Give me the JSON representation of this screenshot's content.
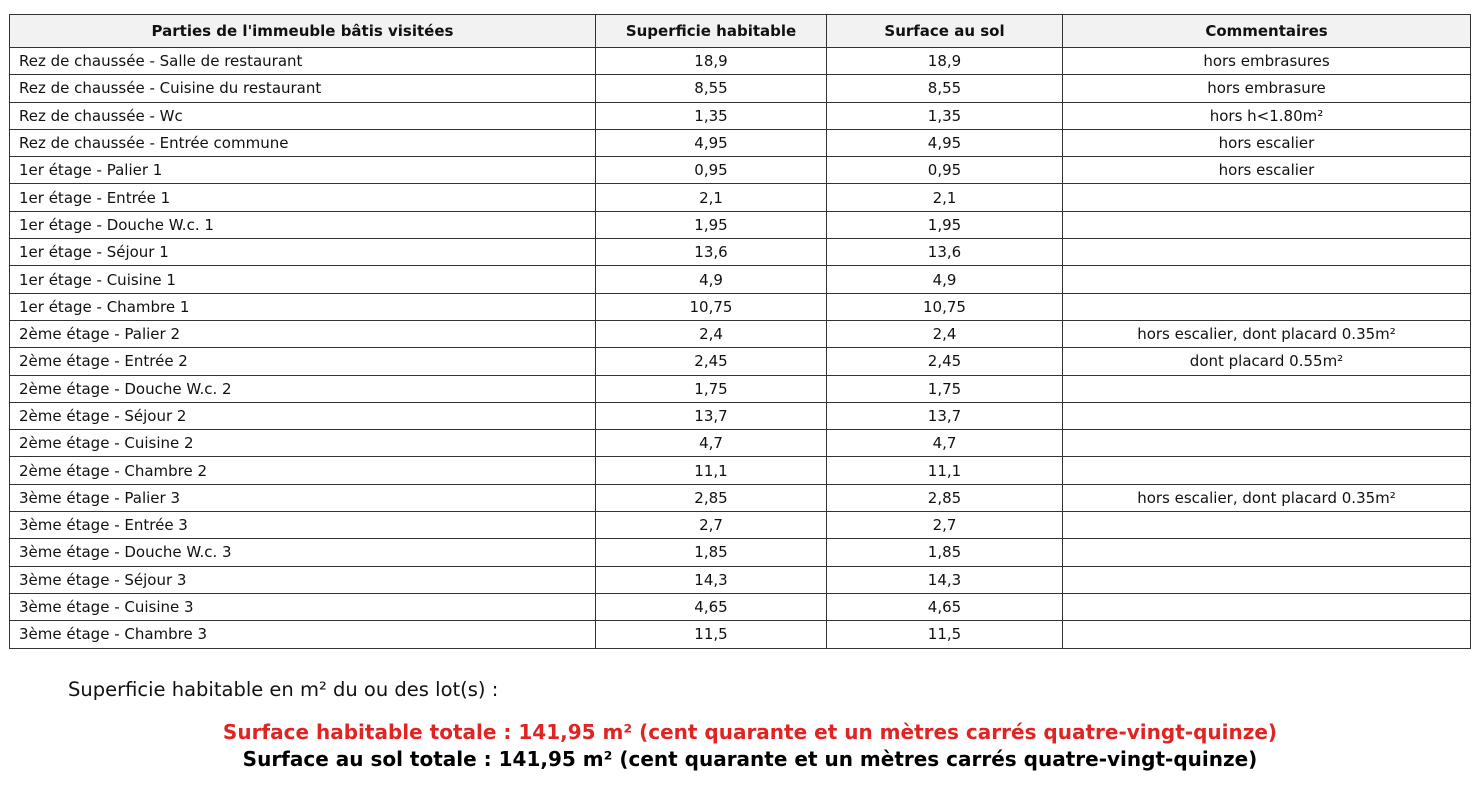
{
  "table": {
    "headers": [
      "Parties de l'immeuble bâtis visitées",
      "Superficie habitable",
      "Surface au sol",
      "Commentaires"
    ],
    "rows": [
      [
        "Rez de chaussée - Salle de restaurant",
        "18,9",
        "18,9",
        "hors embrasures"
      ],
      [
        "Rez de chaussée - Cuisine du restaurant",
        "8,55",
        "8,55",
        "hors embrasure"
      ],
      [
        "Rez de chaussée - Wc",
        "1,35",
        "1,35",
        "hors h<1.80m²"
      ],
      [
        "Rez de chaussée - Entrée commune",
        "4,95",
        "4,95",
        "hors escalier"
      ],
      [
        "1er étage - Palier 1",
        "0,95",
        "0,95",
        "hors escalier"
      ],
      [
        "1er étage - Entrée 1",
        "2,1",
        "2,1",
        ""
      ],
      [
        "1er étage - Douche W.c. 1",
        "1,95",
        "1,95",
        ""
      ],
      [
        "1er étage - Séjour 1",
        "13,6",
        "13,6",
        ""
      ],
      [
        "1er étage - Cuisine 1",
        "4,9",
        "4,9",
        ""
      ],
      [
        "1er étage - Chambre 1",
        "10,75",
        "10,75",
        ""
      ],
      [
        "2ème étage - Palier 2",
        "2,4",
        "2,4",
        "hors escalier, dont placard 0.35m²"
      ],
      [
        "2ème étage - Entrée 2",
        "2,45",
        "2,45",
        "dont placard 0.55m²"
      ],
      [
        "2ème étage - Douche W.c. 2",
        "1,75",
        "1,75",
        ""
      ],
      [
        "2ème étage - Séjour 2",
        "13,7",
        "13,7",
        ""
      ],
      [
        "2ème étage - Cuisine 2",
        "4,7",
        "4,7",
        ""
      ],
      [
        "2ème étage - Chambre 2",
        "11,1",
        "11,1",
        ""
      ],
      [
        "3ème étage - Palier 3",
        "2,85",
        "2,85",
        "hors escalier, dont placard 0.35m²"
      ],
      [
        "3ème étage - Entrée 3",
        "2,7",
        "2,7",
        ""
      ],
      [
        "3ème étage - Douche W.c. 3",
        "1,85",
        "1,85",
        ""
      ],
      [
        "3ème étage - Séjour 3",
        "14,3",
        "14,3",
        ""
      ],
      [
        "3ème étage - Cuisine 3",
        "4,65",
        "4,65",
        ""
      ],
      [
        "3ème étage - Chambre 3",
        "11,5",
        "11,5",
        ""
      ]
    ]
  },
  "summary": {
    "label": "Superficie habitable en m² du ou des lot(s) :",
    "total_habitable": "Surface habitable totale : 141,95 m² (cent quarante et un mètres carrés quatre-vingt-quinze)",
    "total_sol": "Surface au sol totale : 141,95 m² (cent quarante et un mètres carrés quatre-vingt-quinze)",
    "highlight_color": "#e02424"
  }
}
